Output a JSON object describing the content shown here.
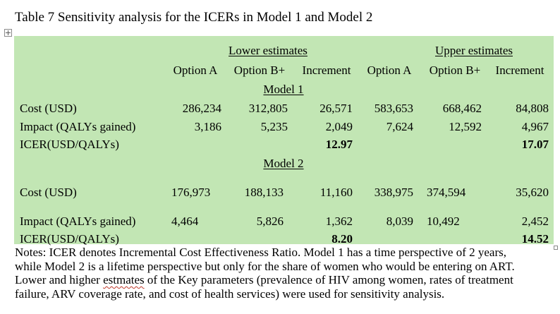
{
  "caption": "Table 7 Sensitivity analysis for the ICERs in Model 1 and Model 2",
  "headers": {
    "group_lower": "Lower estimates",
    "group_upper": "Upper estimates",
    "columns": [
      "Option A",
      "Option B+",
      "Increment",
      "Option A",
      "Option B+",
      "Increment"
    ]
  },
  "model1": {
    "title": "Model 1",
    "rows": [
      {
        "label": "Cost (USD)",
        "values": [
          "286,234",
          "312,805",
          "26,571",
          "583,653",
          "668,462",
          "84,808"
        ]
      },
      {
        "label": "Impact (QALYs gained)",
        "values": [
          "3,186",
          "5,235",
          "2,049",
          "7,624",
          "12,592",
          "4,967"
        ]
      },
      {
        "label": "ICER(USD/QALYs)",
        "values": [
          "",
          "",
          "12.97",
          "",
          "",
          "17.07"
        ]
      }
    ]
  },
  "model2": {
    "title": "Model 2",
    "rows": [
      {
        "label": "Cost (USD)",
        "values": [
          "176,973",
          "188,133",
          "11,160",
          "338,975",
          "374,594",
          "35,620"
        ]
      },
      {
        "label": "Impact (QALYs gained)",
        "values": [
          "4,464",
          "5,826",
          "1,362",
          "8,039",
          "10,492",
          "2,452"
        ]
      },
      {
        "label": "ICER(USD/QALYs)",
        "values": [
          "",
          "",
          "8.20",
          "",
          "",
          "14.52"
        ]
      }
    ]
  },
  "notes": {
    "line1": "Notes: ICER denotes Incremental Cost Effectiveness Ratio.  Model 1 has a time perspective of 2 years,",
    "line2": "while Model 2 is a lifetime perspective but only for the share of women who would be entering on ART.",
    "line3_before": "Lower and higher ",
    "line3_misspelled": "estmates",
    "line3_after": " of the Key parameters (prevalence of HIV among women, rates of treatment",
    "line4": "failure, ARV coverage rate, and cost of health services) were used for sensitivity analysis."
  },
  "colors": {
    "table_background": "#c2e6b4",
    "spellcheck_underline": "#c0392b"
  }
}
